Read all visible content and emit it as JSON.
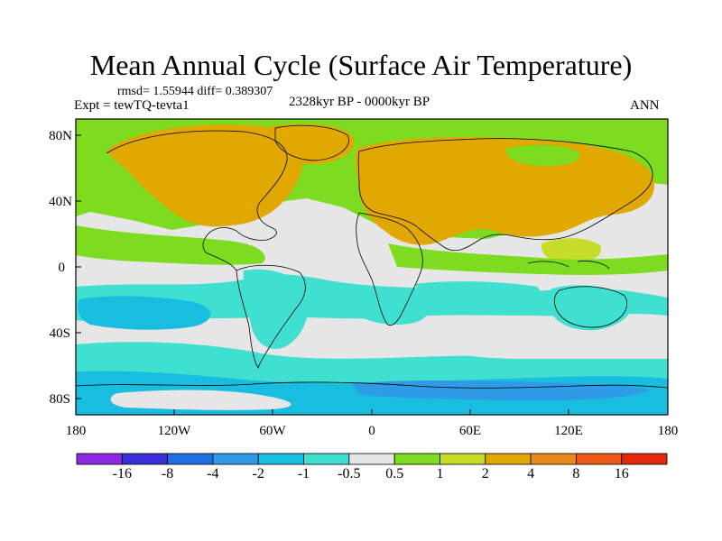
{
  "figure": {
    "title": "Mean Annual Cycle (Surface Air Temperature)",
    "stats": "rmsd= 1.55944  diff= 0.389307",
    "experiment": "Expt = tewTQ-tevta1",
    "period": "2328kyr BP - 0000kyr BP",
    "season": "ANN"
  },
  "axes": {
    "lat_labels": [
      "80N",
      "40N",
      "0",
      "40S",
      "80S"
    ],
    "lon_labels": [
      "180",
      "120W",
      "60W",
      "0",
      "60E",
      "120E",
      "180"
    ]
  },
  "colorbar": {
    "labels": [
      "-16",
      "-8",
      "-4",
      "-2",
      "-1",
      "-0.5",
      "0.5",
      "1",
      "2",
      "4",
      "8",
      "16"
    ],
    "colors": [
      "#8a2be2",
      "#3a2fd6",
      "#1f6fe0",
      "#2f9be6",
      "#18bde0",
      "#40e0d0",
      "#e6e6e6",
      "#7ddc1f",
      "#c8dc2a",
      "#e0a800",
      "#e88a1a",
      "#ea5a14",
      "#e02a0a"
    ]
  },
  "palette": {
    "background": "#e6e6e6",
    "coast": "#000000"
  }
}
